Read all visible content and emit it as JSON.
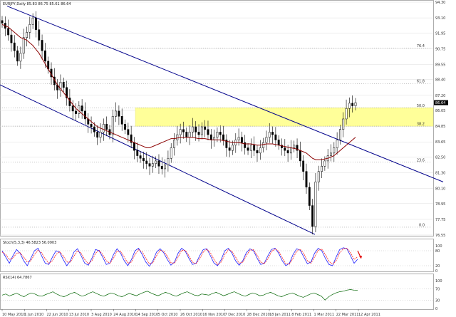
{
  "chart_data": [
    {
      "type": "candlestick",
      "title": "EURJPY,Daily  85.83 86.75 85.61 86.64",
      "x_labels": [
        "10 May 2010",
        "1 Jun 2010",
        "22 Jun 2010",
        "13 Jul 2010",
        "3 Aug 2010",
        "24 Aug 2010",
        "14 Sep 2010",
        "5 Oct 2010",
        "26 Oct 2010",
        "16 Nov 2010",
        "7 Dec 2010",
        "28 Dec 2010",
        "18 Jan 2011",
        "8 Feb 2011",
        "1 Mar 2011",
        "22 Mar 2011",
        "12 Apr 2011"
      ],
      "y_ticks": [
        "76.55",
        "77.75",
        "78.95",
        "80.10",
        "81.30",
        "82.50",
        "83.65",
        "84.85",
        "86.05",
        "87.20",
        "88.40",
        "89.55",
        "90.75",
        "91.95",
        "93.10",
        "94.30"
      ],
      "ylim": [
        76.55,
        94.3
      ],
      "last_price_label": "86.64",
      "fib_levels": [
        {
          "label": "0.0",
          "value": 77.15
        },
        {
          "label": "23.6",
          "value": 82.1
        },
        {
          "label": "38.2",
          "value": 84.85
        },
        {
          "label": "50.0",
          "value": 86.25
        },
        {
          "label": "61.8",
          "value": 88.1
        },
        {
          "label": "76.4",
          "value": 90.8
        }
      ],
      "zone_fill": "#ffff99",
      "channel_color": "#00008b",
      "ma_color": "#8b0000",
      "candle_color": "#000000",
      "close": [
        92.7,
        92.3,
        91.8,
        91.2,
        90.6,
        89.8,
        90.4,
        91.6,
        92.0,
        92.6,
        93.1,
        92.2,
        91.4,
        90.6,
        89.8,
        89.2,
        88.6,
        88.0,
        87.6,
        88.2,
        87.8,
        87.0,
        86.4,
        86.0,
        85.8,
        86.4,
        86.0,
        85.4,
        85.0,
        84.8,
        84.4,
        84.0,
        84.4,
        85.0,
        84.6,
        84.2,
        85.6,
        86.0,
        85.6,
        85.0,
        84.6,
        84.2,
        83.6,
        83.0,
        82.6,
        82.4,
        82.2,
        82.0,
        81.8,
        82.0,
        82.2,
        81.8,
        81.6,
        81.9,
        82.4,
        83.2,
        83.8,
        84.2,
        84.6,
        84.4,
        84.0,
        84.4,
        84.8,
        84.4,
        84.2,
        84.8,
        84.6,
        84.2,
        83.8,
        84.0,
        84.4,
        84.2,
        83.8,
        83.2,
        83.0,
        83.4,
        83.8,
        84.0,
        83.6,
        83.2,
        83.0,
        83.4,
        83.0,
        82.8,
        83.2,
        83.6,
        84.0,
        84.4,
        84.2,
        83.8,
        83.4,
        83.2,
        83.0,
        82.8,
        83.2,
        83.4,
        83.0,
        82.2,
        81.4,
        80.2,
        78.8,
        77.2,
        80.6,
        81.4,
        81.8,
        82.2,
        82.6,
        82.8,
        83.2,
        83.8,
        84.6,
        85.4,
        86.2,
        86.6,
        86.4,
        86.64
      ],
      "ma": [
        92.6,
        92.5,
        92.4,
        92.2,
        92.0,
        91.8,
        91.6,
        91.5,
        91.4,
        91.2,
        91.0,
        90.7,
        90.4,
        90.0,
        89.6,
        89.2,
        88.8,
        88.4,
        88.0,
        87.7,
        87.4,
        87.1,
        86.8,
        86.5,
        86.2,
        86.0,
        85.8,
        85.6,
        85.4,
        85.2,
        85.0,
        84.8,
        84.7,
        84.6,
        84.5,
        84.4,
        84.3,
        84.2,
        84.1,
        84.0,
        83.9,
        83.8,
        83.7,
        83.6,
        83.5,
        83.4,
        83.3,
        83.2,
        83.2,
        83.3,
        83.4,
        83.5,
        83.6,
        83.7,
        83.8,
        83.9,
        83.9,
        83.95,
        84.0,
        84.0,
        84.0,
        84.0,
        84.0,
        83.95,
        83.9,
        83.9,
        83.9,
        83.85,
        83.8,
        83.8,
        83.8,
        83.8,
        83.75,
        83.7,
        83.65,
        83.6,
        83.6,
        83.6,
        83.55,
        83.5,
        83.5,
        83.5,
        83.45,
        83.4,
        83.4,
        83.45,
        83.5,
        83.5,
        83.5,
        83.45,
        83.4,
        83.35,
        83.3,
        83.25,
        83.2,
        83.15,
        83.1,
        83.0,
        82.9,
        82.8,
        82.6,
        82.4,
        82.3,
        82.3,
        82.3,
        82.35,
        82.4,
        82.5,
        82.6,
        82.8,
        83.0,
        83.2,
        83.4,
        83.6,
        83.8,
        84.0
      ]
    },
    {
      "type": "line",
      "title": "Stoch(5,3,3) 46.5823 56.0903",
      "ylim": [
        0,
        100
      ],
      "y_ticks": [
        "100",
        "80",
        "20",
        "0"
      ],
      "main_color": "#1c1cff",
      "signal_color": "#ff2020",
      "main": [
        80,
        55,
        30,
        60,
        85,
        70,
        40,
        20,
        50,
        80,
        90,
        60,
        30,
        25,
        55,
        80,
        75,
        45,
        20,
        40,
        75,
        88,
        60,
        30,
        22,
        50,
        85,
        80,
        55,
        25,
        30,
        65,
        88,
        70,
        40,
        20,
        45,
        80,
        90,
        65,
        35,
        18,
        40,
        75,
        88,
        72,
        45,
        22,
        35,
        70,
        90,
        78,
        50,
        25,
        30,
        60,
        85,
        88,
        60,
        30,
        20,
        45,
        80,
        90,
        70,
        40,
        22,
        40,
        72,
        88,
        80,
        50,
        25,
        30,
        60,
        85,
        90,
        70,
        40,
        20,
        30,
        65,
        88,
        82,
        55,
        28,
        35,
        70,
        90,
        80,
        50,
        25,
        20,
        55,
        85,
        92,
        88,
        60,
        30,
        46
      ],
      "signal": [
        75,
        65,
        45,
        50,
        70,
        72,
        55,
        35,
        40,
        65,
        82,
        72,
        48,
        30,
        40,
        65,
        76,
        60,
        35,
        35,
        58,
        80,
        70,
        45,
        28,
        40,
        70,
        82,
        65,
        40,
        30,
        50,
        78,
        78,
        55,
        30,
        35,
        65,
        84,
        76,
        50,
        28,
        32,
        60,
        82,
        78,
        58,
        32,
        30,
        55,
        82,
        82,
        60,
        35,
        28,
        48,
        75,
        86,
        72,
        45,
        25,
        35,
        65,
        84,
        78,
        55,
        30,
        34,
        60,
        82,
        84,
        62,
        35,
        28,
        48,
        76,
        88,
        78,
        52,
        28,
        26,
        50,
        78,
        86,
        68,
        40,
        30,
        55,
        82,
        86,
        65,
        38,
        25,
        40,
        72,
        88,
        90,
        72,
        45,
        56
      ]
    },
    {
      "type": "line",
      "title": "RSI(14) 64.7867",
      "ylim": [
        0,
        100
      ],
      "y_ticks": [
        "100",
        "70",
        "30",
        "0"
      ],
      "line_color": "#006400",
      "values": [
        48,
        52,
        45,
        50,
        55,
        48,
        42,
        50,
        56,
        52,
        46,
        44,
        50,
        55,
        60,
        52,
        46,
        42,
        48,
        54,
        58,
        50,
        44,
        48,
        55,
        60,
        54,
        48,
        44,
        50,
        56,
        52,
        46,
        42,
        48,
        54,
        50,
        46,
        52,
        58,
        62,
        56,
        50,
        46,
        52,
        58,
        54,
        48,
        44,
        50,
        56,
        60,
        54,
        48,
        46,
        52,
        50,
        48,
        54,
        58,
        52,
        46,
        50,
        56,
        60,
        54,
        48,
        44,
        50,
        56,
        52,
        46,
        48,
        54,
        58,
        52,
        46,
        42,
        48,
        52,
        56,
        50,
        44,
        40,
        46,
        52,
        56,
        50,
        44,
        30,
        42,
        50,
        56,
        60,
        62,
        66,
        68,
        66,
        64.79
      ]
    }
  ]
}
